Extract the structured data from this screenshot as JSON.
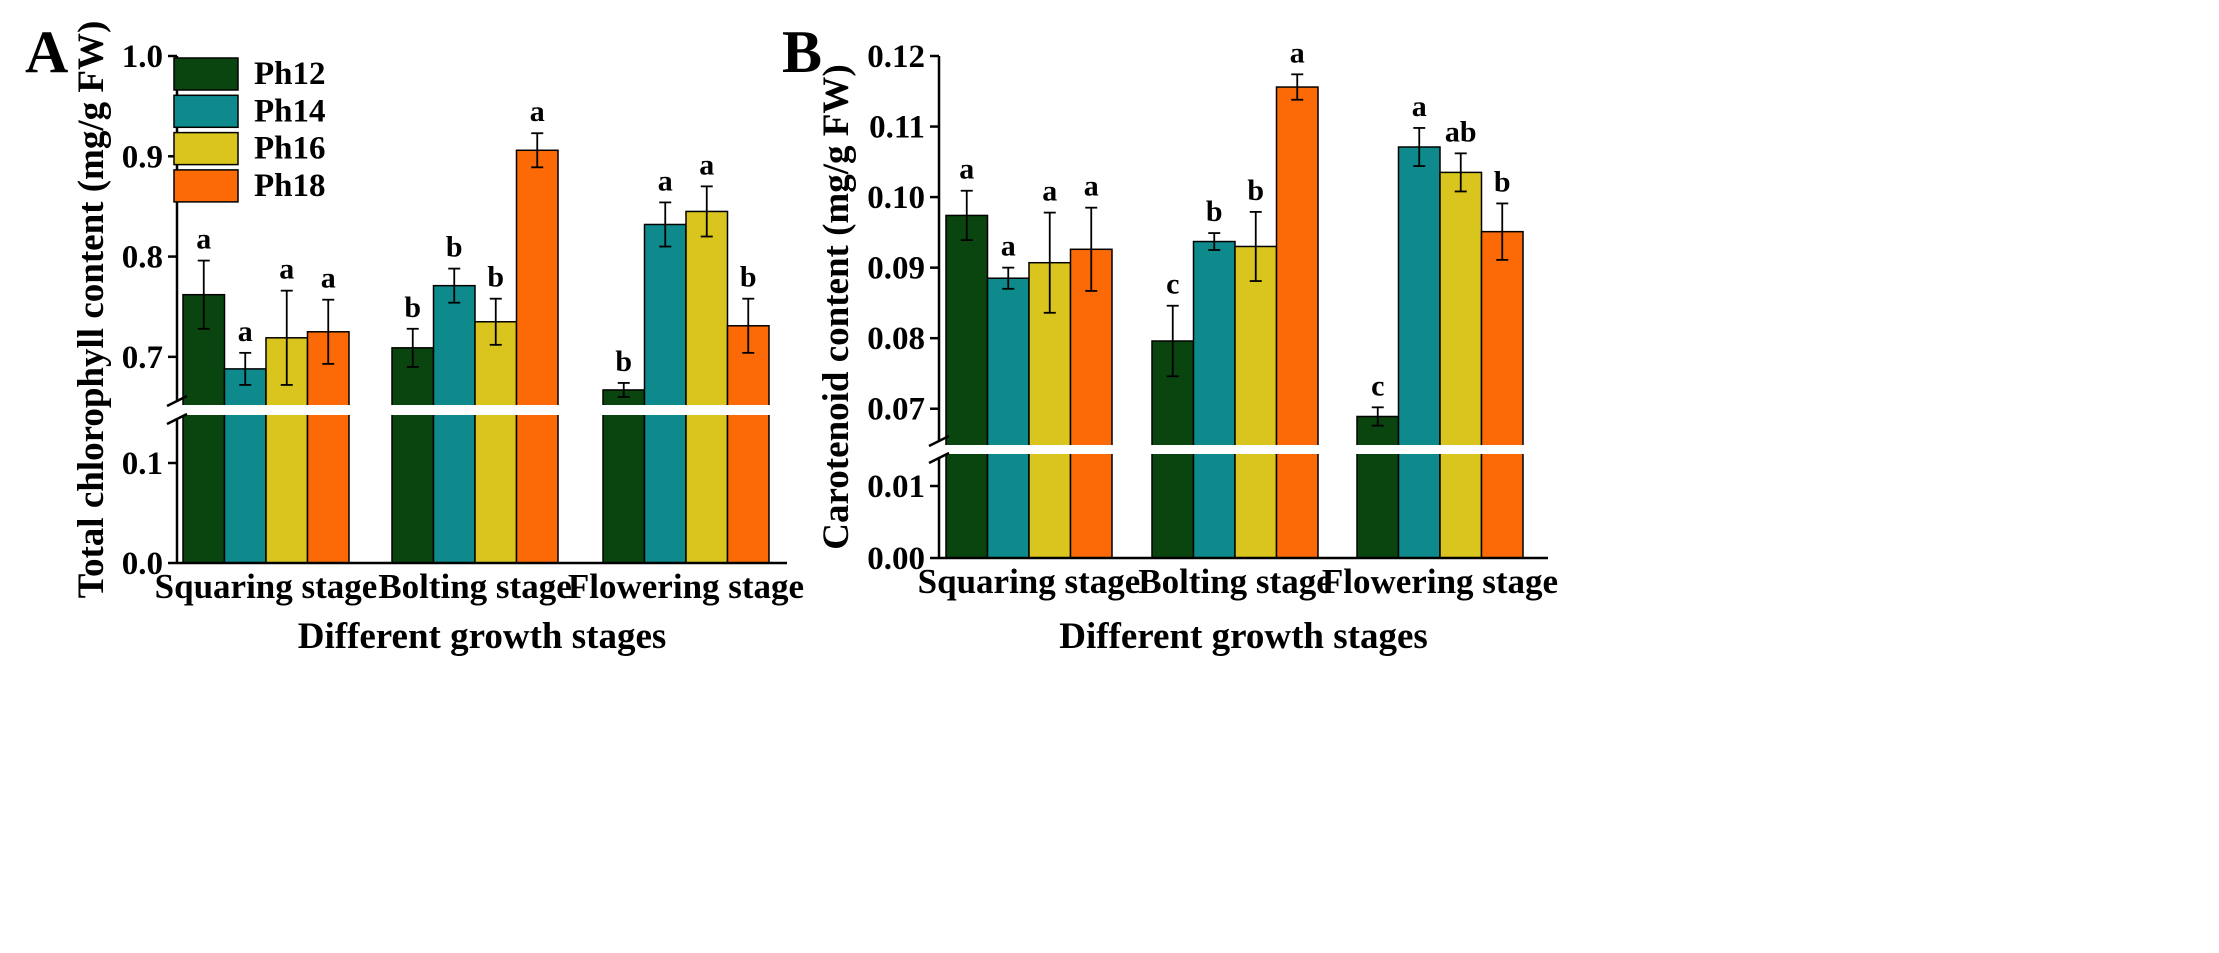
{
  "chart_data": [
    {
      "type": "bar",
      "panel_label": "A",
      "title": "",
      "xlabel": "Different growth stages",
      "ylabel": "Total chlorophyll content (mg/g FW)",
      "categories": [
        "Squaring stage",
        "Bolting stage",
        "Flowering stage"
      ],
      "axis_break": {
        "lower_range": [
          0.0,
          0.15
        ],
        "upper_range": [
          0.65,
          1.0
        ]
      },
      "ticks_lower": [
        "0.0",
        "0.1"
      ],
      "ticks_upper": [
        "0.7",
        "0.8",
        "0.9",
        "1.0"
      ],
      "tick_values_lower": [
        0.0,
        0.1
      ],
      "tick_values_upper": [
        0.7,
        0.8,
        0.9,
        1.0
      ],
      "legend_position": "top-left",
      "series": [
        {
          "name": "Ph12",
          "color": "#0a4510",
          "values": [
            0.762,
            0.709,
            0.667
          ],
          "errors": [
            0.034,
            0.019,
            0.007
          ],
          "letters": [
            "a",
            "b",
            "b"
          ]
        },
        {
          "name": "Ph14",
          "color": "#0e8a8c",
          "values": [
            0.688,
            0.771,
            0.832
          ],
          "errors": [
            0.016,
            0.017,
            0.022
          ],
          "letters": [
            "a",
            "b",
            "a"
          ]
        },
        {
          "name": "Ph16",
          "color": "#d9c51e",
          "values": [
            0.719,
            0.735,
            0.845
          ],
          "errors": [
            0.047,
            0.023,
            0.025
          ],
          "letters": [
            "a",
            "b",
            "a"
          ]
        },
        {
          "name": "Ph18",
          "color": "#fb6a06",
          "values": [
            0.725,
            0.906,
            0.731
          ],
          "errors": [
            0.032,
            0.017,
            0.027
          ],
          "letters": [
            "a",
            "a",
            "b"
          ]
        }
      ]
    },
    {
      "type": "bar",
      "panel_label": "B",
      "title": "",
      "xlabel": "Different growth stages",
      "ylabel": "Carotenoid content (mg/g FW)",
      "categories": [
        "Squaring stage",
        "Bolting stage",
        "Flowering stage"
      ],
      "axis_break": {
        "lower_range": [
          0.0,
          0.015
        ],
        "upper_range": [
          0.065,
          0.12
        ]
      },
      "ticks_lower": [
        "0.00",
        "0.01"
      ],
      "ticks_upper": [
        "0.07",
        "0.08",
        "0.09",
        "0.10",
        "0.11",
        "0.12"
      ],
      "tick_values_lower": [
        0.0,
        0.01
      ],
      "tick_values_upper": [
        0.07,
        0.08,
        0.09,
        0.1,
        0.11,
        0.12
      ],
      "series": [
        {
          "name": "Ph12",
          "color": "#0a4510",
          "values": [
            0.0974,
            0.0796,
            0.0689
          ],
          "errors": [
            0.0035,
            0.005,
            0.0013
          ],
          "letters": [
            "a",
            "c",
            "c"
          ]
        },
        {
          "name": "Ph14",
          "color": "#0e8a8c",
          "values": [
            0.0885,
            0.0937,
            0.1071
          ],
          "errors": [
            0.0015,
            0.0012,
            0.0027
          ],
          "letters": [
            "a",
            "b",
            "a"
          ]
        },
        {
          "name": "Ph16",
          "color": "#d9c51e",
          "values": [
            0.0907,
            0.093,
            0.1035
          ],
          "errors": [
            0.0071,
            0.0049,
            0.0027
          ],
          "letters": [
            "a",
            "b",
            "ab"
          ]
        },
        {
          "name": "Ph18",
          "color": "#fb6a06",
          "values": [
            0.0926,
            0.1156,
            0.0951
          ],
          "errors": [
            0.0059,
            0.0018,
            0.004
          ],
          "letters": [
            "a",
            "a",
            "b"
          ]
        }
      ]
    }
  ]
}
